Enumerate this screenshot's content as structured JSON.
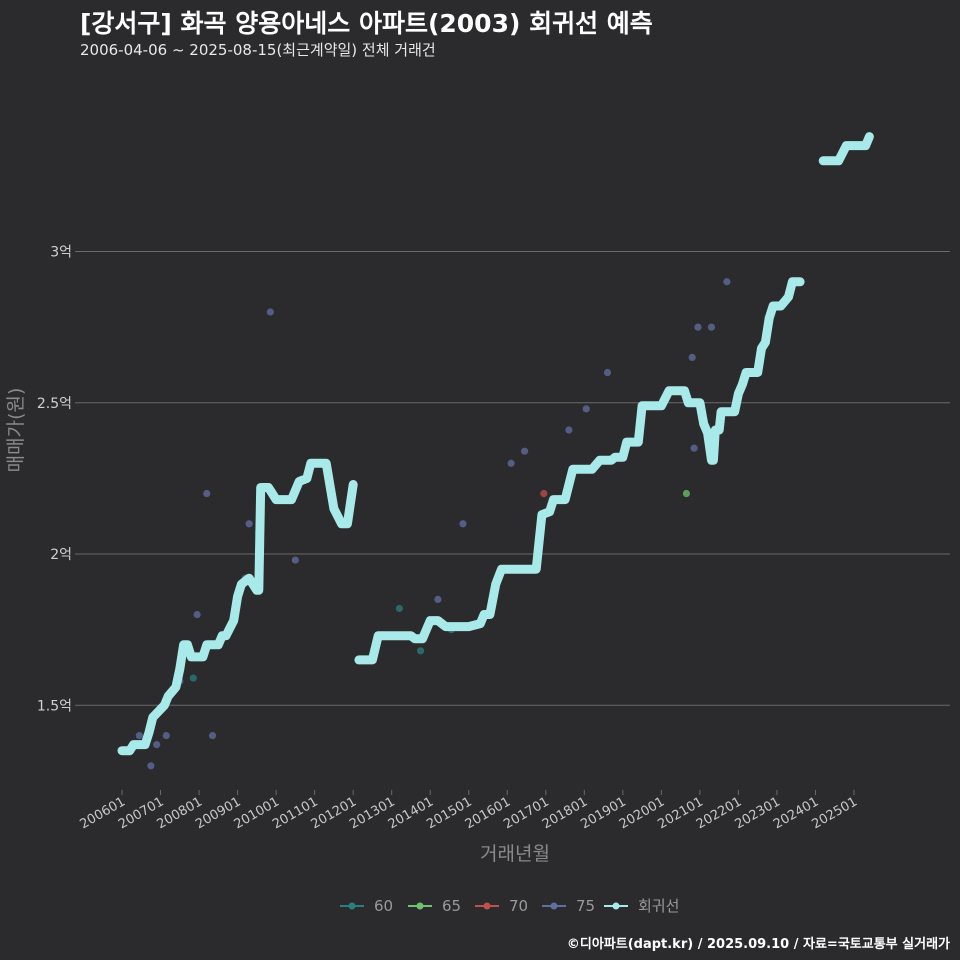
{
  "title": "[강서구] 화곡 양용아네스 아파트(2003) 회귀선 예측",
  "subtitle": "2006-04-06 ~ 2025-08-15(최근계약일) 전체 거래건",
  "caption": "©디아파트(dapt.kr) / 2025.09.10 / 자료=국토교통부 실거래가",
  "colors": {
    "background": "#2b2b2d",
    "grid": "#6a6a6a",
    "regression": "#a8eaea",
    "s60": "#2a7f7f",
    "s65": "#6ec46e",
    "s70": "#c05050",
    "s75": "#6070a0"
  },
  "chart_data": {
    "type": "scatter",
    "xlabel": "거래년월",
    "ylabel": "매매가(원)",
    "x_range": [
      "2006-01",
      "2025-12"
    ],
    "y_range": [
      1.22,
      3.6
    ],
    "y_ticks": [
      {
        "value": 1.5,
        "label": "1.5억"
      },
      {
        "value": 2.0,
        "label": "2억"
      },
      {
        "value": 2.5,
        "label": "2.5억"
      },
      {
        "value": 3.0,
        "label": "3억"
      }
    ],
    "x_ticks": [
      "200601",
      "200701",
      "200801",
      "200901",
      "201001",
      "201101",
      "201201",
      "201301",
      "201401",
      "201501",
      "201601",
      "201701",
      "201801",
      "201901",
      "202001",
      "202101",
      "202201",
      "202301",
      "202401",
      "202501"
    ],
    "legend": {
      "position": "bottom",
      "items": [
        {
          "label": "60",
          "color_key": "s60"
        },
        {
          "label": "65",
          "color_key": "s65"
        },
        {
          "label": "70",
          "color_key": "s70"
        },
        {
          "label": "75",
          "color_key": "s75"
        },
        {
          "label": "회귀선",
          "color_key": "regression"
        }
      ]
    },
    "series": [
      {
        "name": "60",
        "color_key": "s60",
        "points": [
          [
            2007.85,
            1.59
          ],
          [
            2013.2,
            1.82
          ],
          [
            2013.75,
            1.68
          ],
          [
            2014.55,
            1.75
          ],
          [
            2012.5,
            1.65
          ]
        ]
      },
      {
        "name": "65",
        "color_key": "s65",
        "points": [
          [
            2020.65,
            2.2
          ]
        ]
      },
      {
        "name": "70",
        "color_key": "s70",
        "points": [
          [
            2016.95,
            2.2
          ]
        ]
      },
      {
        "name": "75",
        "color_key": "s75",
        "points": [
          [
            2006.45,
            1.4
          ],
          [
            2006.75,
            1.3
          ],
          [
            2006.9,
            1.37
          ],
          [
            2007.15,
            1.4
          ],
          [
            2007.5,
            1.58
          ],
          [
            2007.95,
            1.8
          ],
          [
            2008.2,
            2.2
          ],
          [
            2008.35,
            1.4
          ],
          [
            2009.2,
            1.92
          ],
          [
            2009.3,
            2.1
          ],
          [
            2009.55,
            2.07
          ],
          [
            2009.85,
            2.8
          ],
          [
            2010.5,
            1.98
          ],
          [
            2010.55,
            2.23
          ],
          [
            2014.2,
            1.85
          ],
          [
            2014.85,
            2.1
          ],
          [
            2016.1,
            2.3
          ],
          [
            2016.45,
            2.34
          ],
          [
            2017.6,
            2.41
          ],
          [
            2018.05,
            2.48
          ],
          [
            2018.6,
            2.6
          ],
          [
            2020.8,
            2.65
          ],
          [
            2020.85,
            2.35
          ],
          [
            2020.95,
            2.75
          ],
          [
            2021.3,
            2.75
          ],
          [
            2021.7,
            2.9
          ]
        ]
      }
    ],
    "regression_segments": [
      [
        [
          2006.0,
          1.35
        ],
        [
          2006.2,
          1.35
        ],
        [
          2006.3,
          1.37
        ],
        [
          2006.6,
          1.37
        ],
        [
          2006.7,
          1.41
        ],
        [
          2006.8,
          1.46
        ],
        [
          2007.1,
          1.5
        ],
        [
          2007.2,
          1.53
        ],
        [
          2007.4,
          1.56
        ],
        [
          2007.5,
          1.62
        ],
        [
          2007.6,
          1.7
        ],
        [
          2007.7,
          1.7
        ],
        [
          2007.8,
          1.66
        ],
        [
          2008.1,
          1.66
        ],
        [
          2008.2,
          1.7
        ],
        [
          2008.5,
          1.7
        ],
        [
          2008.6,
          1.73
        ],
        [
          2008.7,
          1.73
        ],
        [
          2008.9,
          1.78
        ],
        [
          2009.0,
          1.86
        ],
        [
          2009.1,
          1.9
        ],
        [
          2009.3,
          1.92
        ],
        [
          2009.5,
          1.88
        ],
        [
          2009.55,
          1.88
        ],
        [
          2009.6,
          2.22
        ],
        [
          2009.8,
          2.22
        ],
        [
          2009.9,
          2.2
        ],
        [
          2010.0,
          2.18
        ],
        [
          2010.4,
          2.18
        ],
        [
          2010.6,
          2.24
        ],
        [
          2010.8,
          2.25
        ],
        [
          2010.9,
          2.3
        ],
        [
          2011.3,
          2.3
        ],
        [
          2011.5,
          2.15
        ],
        [
          2011.7,
          2.1
        ],
        [
          2011.85,
          2.1
        ],
        [
          2012.0,
          2.23
        ]
      ],
      [
        [
          2012.15,
          1.65
        ],
        [
          2012.5,
          1.65
        ],
        [
          2012.65,
          1.73
        ],
        [
          2013.5,
          1.73
        ],
        [
          2013.6,
          1.72
        ],
        [
          2013.8,
          1.72
        ],
        [
          2014.0,
          1.78
        ],
        [
          2014.2,
          1.78
        ],
        [
          2014.4,
          1.76
        ],
        [
          2015.0,
          1.76
        ],
        [
          2015.3,
          1.77
        ],
        [
          2015.4,
          1.8
        ],
        [
          2015.55,
          1.8
        ],
        [
          2015.7,
          1.9
        ],
        [
          2015.85,
          1.95
        ],
        [
          2016.5,
          1.95
        ],
        [
          2016.75,
          1.95
        ],
        [
          2016.9,
          2.13
        ],
        [
          2017.1,
          2.14
        ],
        [
          2017.2,
          2.18
        ],
        [
          2017.5,
          2.18
        ],
        [
          2017.7,
          2.28
        ],
        [
          2018.2,
          2.28
        ],
        [
          2018.4,
          2.31
        ],
        [
          2018.7,
          2.31
        ],
        [
          2018.8,
          2.32
        ],
        [
          2019.0,
          2.32
        ],
        [
          2019.1,
          2.37
        ],
        [
          2019.4,
          2.37
        ],
        [
          2019.5,
          2.49
        ],
        [
          2019.8,
          2.49
        ],
        [
          2020.0,
          2.49
        ],
        [
          2020.2,
          2.54
        ],
        [
          2020.6,
          2.54
        ],
        [
          2020.7,
          2.5
        ],
        [
          2020.8,
          2.5
        ],
        [
          2021.0,
          2.5
        ],
        [
          2021.1,
          2.43
        ],
        [
          2021.2,
          2.4
        ],
        [
          2021.3,
          2.31
        ],
        [
          2021.35,
          2.31
        ],
        [
          2021.4,
          2.41
        ],
        [
          2021.5,
          2.41
        ],
        [
          2021.55,
          2.47
        ],
        [
          2021.9,
          2.47
        ],
        [
          2022.0,
          2.53
        ],
        [
          2022.1,
          2.56
        ],
        [
          2022.2,
          2.6
        ],
        [
          2022.5,
          2.6
        ],
        [
          2022.6,
          2.68
        ],
        [
          2022.7,
          2.7
        ],
        [
          2022.8,
          2.78
        ],
        [
          2022.9,
          2.82
        ],
        [
          2023.1,
          2.82
        ],
        [
          2023.3,
          2.85
        ],
        [
          2023.4,
          2.9
        ],
        [
          2023.6,
          2.9
        ]
      ],
      [
        [
          2024.2,
          3.3
        ],
        [
          2024.6,
          3.3
        ],
        [
          2024.8,
          3.35
        ],
        [
          2025.0,
          3.35
        ],
        [
          2025.3,
          3.35
        ],
        [
          2025.4,
          3.38
        ]
      ]
    ]
  }
}
